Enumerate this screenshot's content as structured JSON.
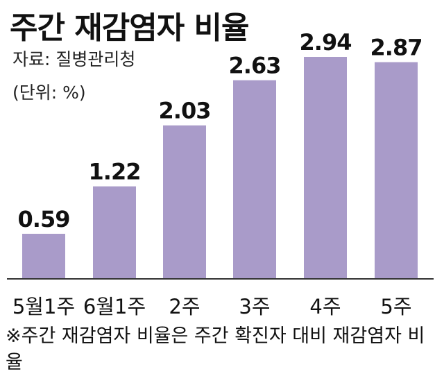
{
  "chart_data": {
    "type": "bar",
    "title": "주간 재감염자 비율",
    "source": "자료: 질병관리청",
    "unit": "(단위: %)",
    "categories": [
      "5월1주",
      "6월1주",
      "2주",
      "3주",
      "4주",
      "5주"
    ],
    "values": [
      0.59,
      1.22,
      2.03,
      2.63,
      2.94,
      2.87
    ],
    "value_labels": [
      "0.59",
      "1.22",
      "2.03",
      "2.63",
      "2.94",
      "2.87"
    ],
    "xlabel": "",
    "ylabel": "",
    "ylim": [
      0,
      2.94
    ],
    "grid": false,
    "bar_color": "#a99bc9",
    "footnote": "※주간 재감염자 비율은 주간 확진자 대비 재감염자 비율"
  }
}
